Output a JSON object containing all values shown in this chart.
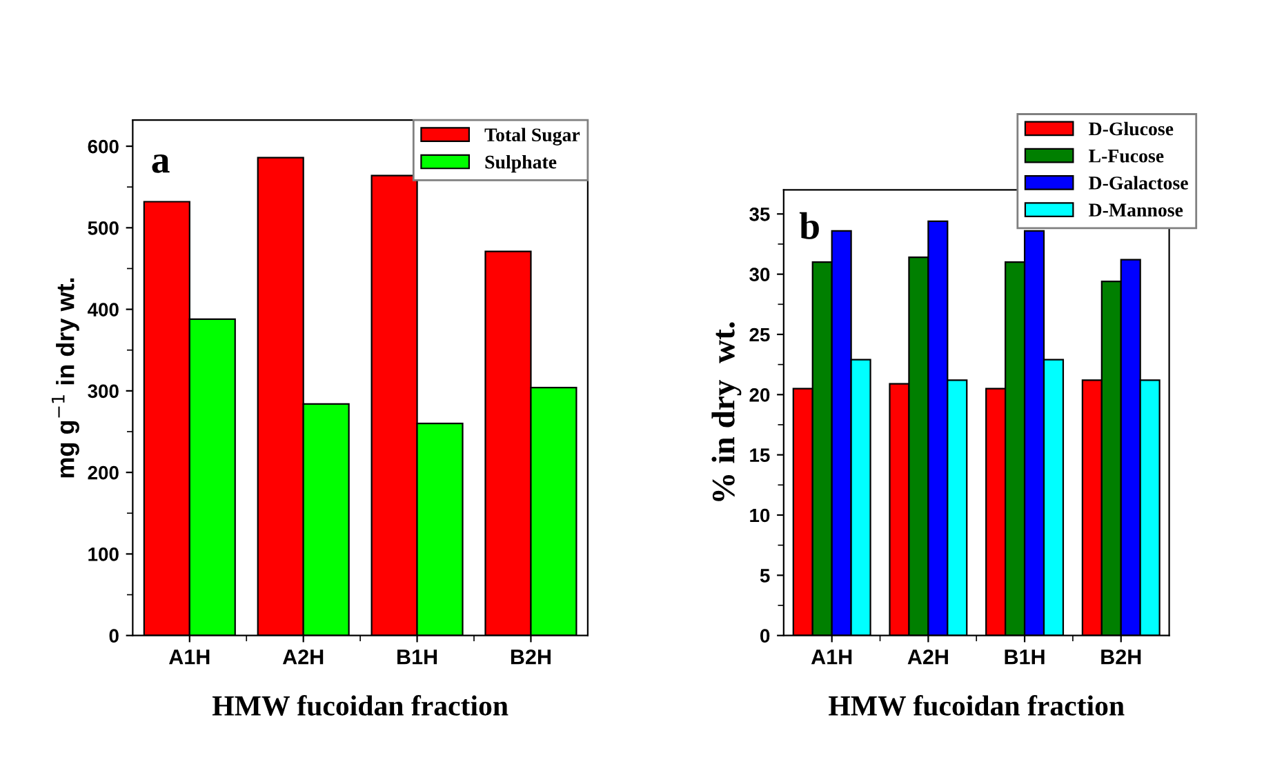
{
  "chart_data": [
    {
      "type": "bar",
      "title": "a",
      "xlabel": "HMW fucoidan fraction",
      "ylabel": "mg g$^{−1}$ in dry wt.",
      "categories": [
        "A1H",
        "A2H",
        "B1H",
        "B2H"
      ],
      "series": [
        {
          "name": "Total Sugar",
          "color": "#ff0000",
          "values": [
            532,
            586,
            564,
            471
          ]
        },
        {
          "name": "Sulphate",
          "color": "#00ff00",
          "values": [
            388,
            284,
            260,
            304
          ]
        }
      ],
      "ylim": [
        0,
        632
      ],
      "yticks": [
        0,
        100,
        200,
        300,
        400,
        500,
        600
      ],
      "legend": "top right"
    },
    {
      "type": "bar",
      "title": "b",
      "xlabel": "HMW fucoidan fraction",
      "ylabel": "% in dry  wt.",
      "categories": [
        "A1H",
        "A2H",
        "B1H",
        "B2H"
      ],
      "series": [
        {
          "name": "D-Glucose",
          "color": "#ff0000",
          "values": [
            20.5,
            20.9,
            20.5,
            21.2
          ]
        },
        {
          "name": "L-Fucose",
          "color": "#007f00",
          "values": [
            31.0,
            31.4,
            31.0,
            29.4
          ]
        },
        {
          "name": "D-Galactose",
          "color": "#0000ff",
          "values": [
            33.6,
            34.4,
            33.6,
            31.2
          ]
        },
        {
          "name": "D-Mannose",
          "color": "#00ffff",
          "values": [
            22.9,
            21.2,
            22.9,
            21.2
          ]
        }
      ],
      "ylim": [
        0,
        37
      ],
      "yticks": [
        0,
        5,
        10,
        15,
        20,
        25,
        30,
        35
      ],
      "legend": "top right"
    }
  ]
}
